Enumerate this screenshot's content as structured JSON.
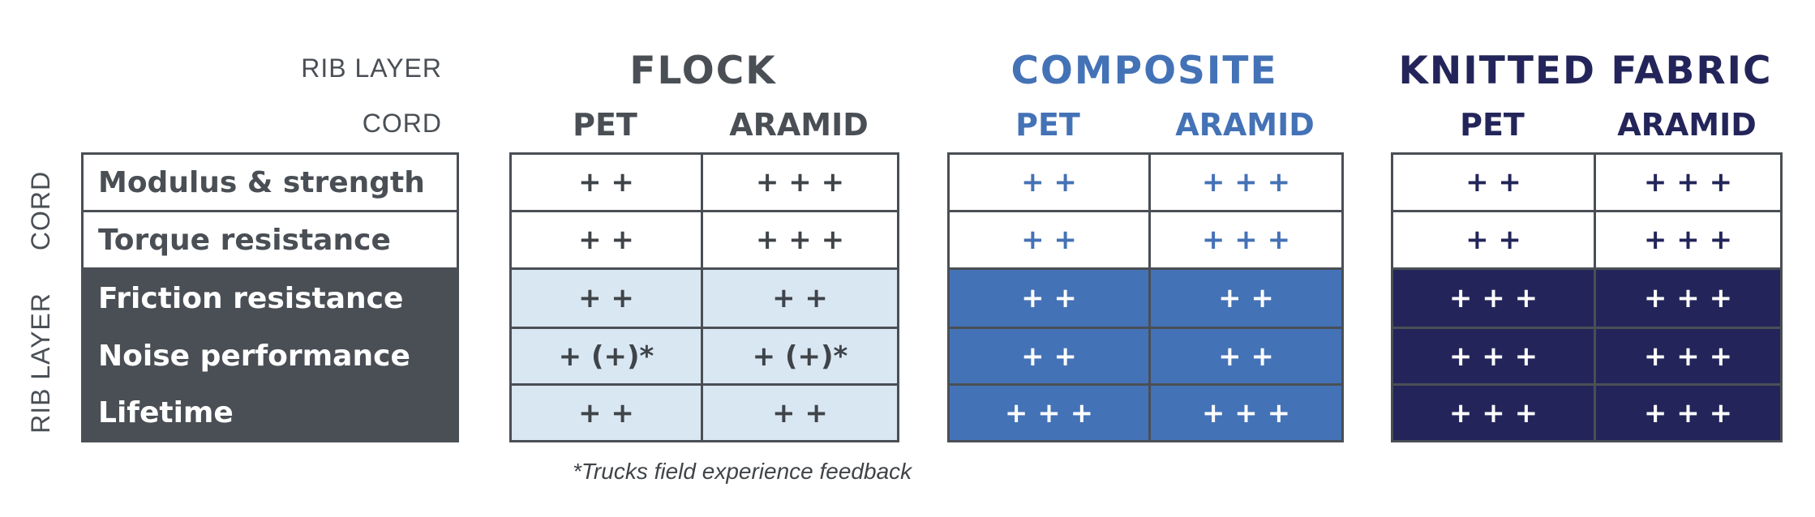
{
  "headers": {
    "rib_layer": "RIB LAYER",
    "cord": "CORD"
  },
  "groups": [
    {
      "title": "FLOCK",
      "color": "#4a4f55"
    },
    {
      "title": "COMPOSITE",
      "color": "#4472b6"
    },
    {
      "title": "KNITTED FABRIC",
      "color": "#23255a"
    }
  ],
  "sub_columns": [
    "PET",
    "ARAMID"
  ],
  "side_labels": {
    "cord": "CORD",
    "rib_layer": "RIB LAYER"
  },
  "rows": [
    "Modulus & strength",
    "Torque resistance",
    "Friction resistance",
    "Noise performance",
    "Lifetime"
  ],
  "values": {
    "flock": {
      "pet": [
        "+ +",
        "+ +",
        "+ +",
        "+ (+)*",
        "+ +"
      ],
      "aramid": [
        "+ + +",
        "+ + +",
        "+ +",
        "+ (+)*",
        "+ +"
      ]
    },
    "composite": {
      "pet": [
        "+ +",
        "+ +",
        "+ +",
        "+ +",
        "+ + +"
      ],
      "aramid": [
        "+ + +",
        "+ + +",
        "+ +",
        "+ +",
        "+ + +"
      ]
    },
    "knitted_fabric": {
      "pet": [
        "+ +",
        "+ +",
        "+ + +",
        "+ + +",
        "+ + +"
      ],
      "aramid": [
        "+ + +",
        "+ + +",
        "+ + +",
        "+ + +",
        "+ + +"
      ]
    }
  },
  "footnote": "*Trucks field experience feedback",
  "colors": {
    "dark_gray": "#4a4f55",
    "light_blue": "#d9e7f3",
    "mid_blue": "#4472b6",
    "navy": "#23255a"
  }
}
